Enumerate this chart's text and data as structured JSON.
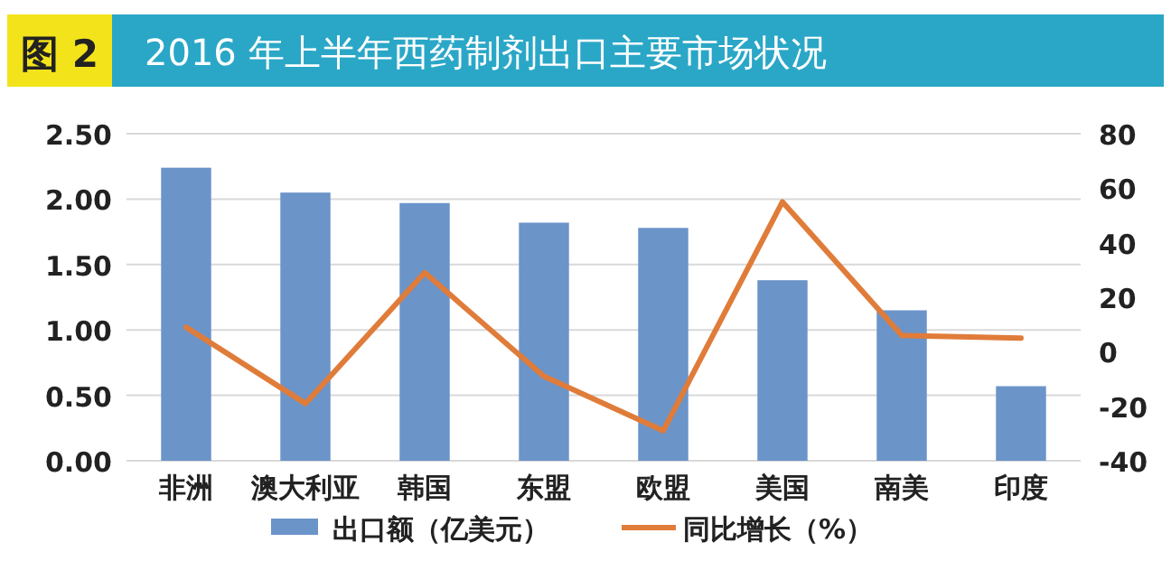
{
  "chart_data": {
    "type": "bar",
    "title": "2016 年上半年西药制剂出口主要市场状况",
    "annotations": [
      "图 2"
    ],
    "categories": [
      "非洲",
      "澳大利亚",
      "韩国",
      "东盟",
      "欧盟",
      "美国",
      "南美",
      "印度"
    ],
    "series": [
      {
        "name": "出口额（亿美元）",
        "color": "#6b94c9",
        "values": [
          2.24,
          2.05,
          1.97,
          1.82,
          1.78,
          1.38,
          1.15,
          0.57
        ]
      },
      {
        "name": "同比增长（%）",
        "type": "line",
        "axis": "y2",
        "color": "#e07c3a",
        "values": [
          9,
          -19,
          29,
          -9,
          -29,
          55,
          6,
          5
        ]
      }
    ],
    "ylim": [
      0,
      2.5
    ],
    "yticks": [
      {
        "value": 0,
        "label": "0.00"
      },
      {
        "value": 0.5,
        "label": "0.50"
      },
      {
        "value": 1,
        "label": "1.00"
      },
      {
        "value": 1.5,
        "label": "1.50"
      },
      {
        "value": 2,
        "label": "2.00"
      },
      {
        "value": 2.5,
        "label": "2.50"
      }
    ],
    "y2lim": [
      -40,
      80
    ],
    "y2ticks": [
      -40,
      -20,
      0,
      20,
      40,
      60,
      80
    ],
    "grid": "y",
    "legend": "bottom",
    "marker": "none",
    "line_style": "solid"
  }
}
